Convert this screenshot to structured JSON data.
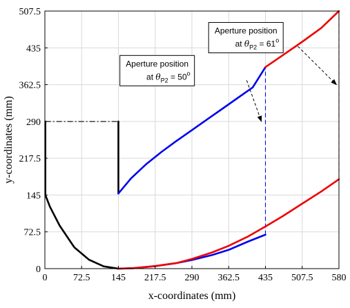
{
  "chart_data": {
    "type": "line",
    "xlabel": "x-coordinates (mm)",
    "ylabel": "y-coordinates (mm)",
    "xlim": [
      0,
      580
    ],
    "ylim": [
      0,
      507.5
    ],
    "xticks": [
      "0",
      "72.5",
      "145",
      "217.5",
      "290",
      "362.5",
      "435",
      "507.5",
      "580"
    ],
    "yticks": [
      "0",
      "72.5",
      "145",
      "217.5",
      "290",
      "362.5",
      "435",
      "507.5"
    ],
    "grid": true,
    "colors": {
      "black": "#000000",
      "blue": "#0000ee",
      "red": "#ee0000",
      "grid": "#d9d9d9"
    },
    "series": [
      {
        "color": "black",
        "style": "solid",
        "points": [
          [
            145,
            0
          ],
          [
            116,
            4.5
          ],
          [
            87,
            17.5
          ],
          [
            58,
            42
          ],
          [
            29,
            85
          ],
          [
            10,
            122
          ],
          [
            1,
            145
          ],
          [
            1,
            290
          ]
        ]
      },
      {
        "color": "black",
        "style": "solid",
        "points": [
          [
            145,
            148
          ],
          [
            145,
            290
          ]
        ]
      },
      {
        "color": "black",
        "style": "dashdot",
        "points": [
          [
            1,
            290
          ],
          [
            145,
            290
          ]
        ]
      },
      {
        "color": "blue",
        "style": "solid",
        "points": [
          [
            145,
            148
          ],
          [
            170,
            178
          ],
          [
            200,
            206
          ],
          [
            230,
            230
          ],
          [
            260,
            252
          ],
          [
            290,
            273
          ],
          [
            320,
            294
          ],
          [
            350,
            315
          ],
          [
            380,
            336
          ],
          [
            410,
            357
          ],
          [
            435,
            397
          ]
        ]
      },
      {
        "color": "blue",
        "style": "solid",
        "points": [
          [
            145,
            0
          ],
          [
            175,
            1
          ],
          [
            217.5,
            5
          ],
          [
            260,
            11
          ],
          [
            290,
            17
          ],
          [
            330,
            27
          ],
          [
            362.5,
            37
          ],
          [
            400,
            53
          ],
          [
            435,
            67
          ]
        ]
      },
      {
        "color": "blue",
        "style": "dashed",
        "points": [
          [
            435,
            67
          ],
          [
            435,
            397
          ]
        ]
      },
      {
        "color": "red",
        "style": "solid",
        "points": [
          [
            435,
            397
          ],
          [
            470,
            421
          ],
          [
            507.5,
            447
          ],
          [
            545,
            474
          ],
          [
            580,
            507.5
          ]
        ]
      },
      {
        "color": "red",
        "style": "solid",
        "points": [
          [
            145,
            0
          ],
          [
            175,
            1
          ],
          [
            217.5,
            5
          ],
          [
            260,
            11
          ],
          [
            290,
            19
          ],
          [
            330,
            32
          ],
          [
            362.5,
            45
          ],
          [
            400,
            63
          ],
          [
            435,
            83
          ],
          [
            470,
            104
          ],
          [
            507.5,
            128
          ],
          [
            545,
            152
          ],
          [
            580,
            176
          ]
        ]
      },
      {
        "color": "red",
        "style": "dashed",
        "points": [
          [
            580,
            176
          ],
          [
            580,
            507.5
          ]
        ]
      }
    ],
    "annotations": [
      {
        "line1": "Aperture position",
        "prefix": "at ",
        "symbol": "θ",
        "subscript": "P2",
        "suffix": " = 50",
        "superscript": "o",
        "box_at": [
          295,
          420
        ],
        "arrow_tail": [
          398,
          371
        ],
        "arrow_head": [
          427,
          290
        ]
      },
      {
        "line1": "Aperture position",
        "prefix": "at ",
        "symbol": "θ",
        "subscript": "P2",
        "suffix": " = 61",
        "superscript": "o",
        "box_at": [
          470,
          485
        ],
        "arrow_tail": [
          499,
          438
        ],
        "arrow_head": [
          575,
          362.5
        ]
      }
    ]
  }
}
